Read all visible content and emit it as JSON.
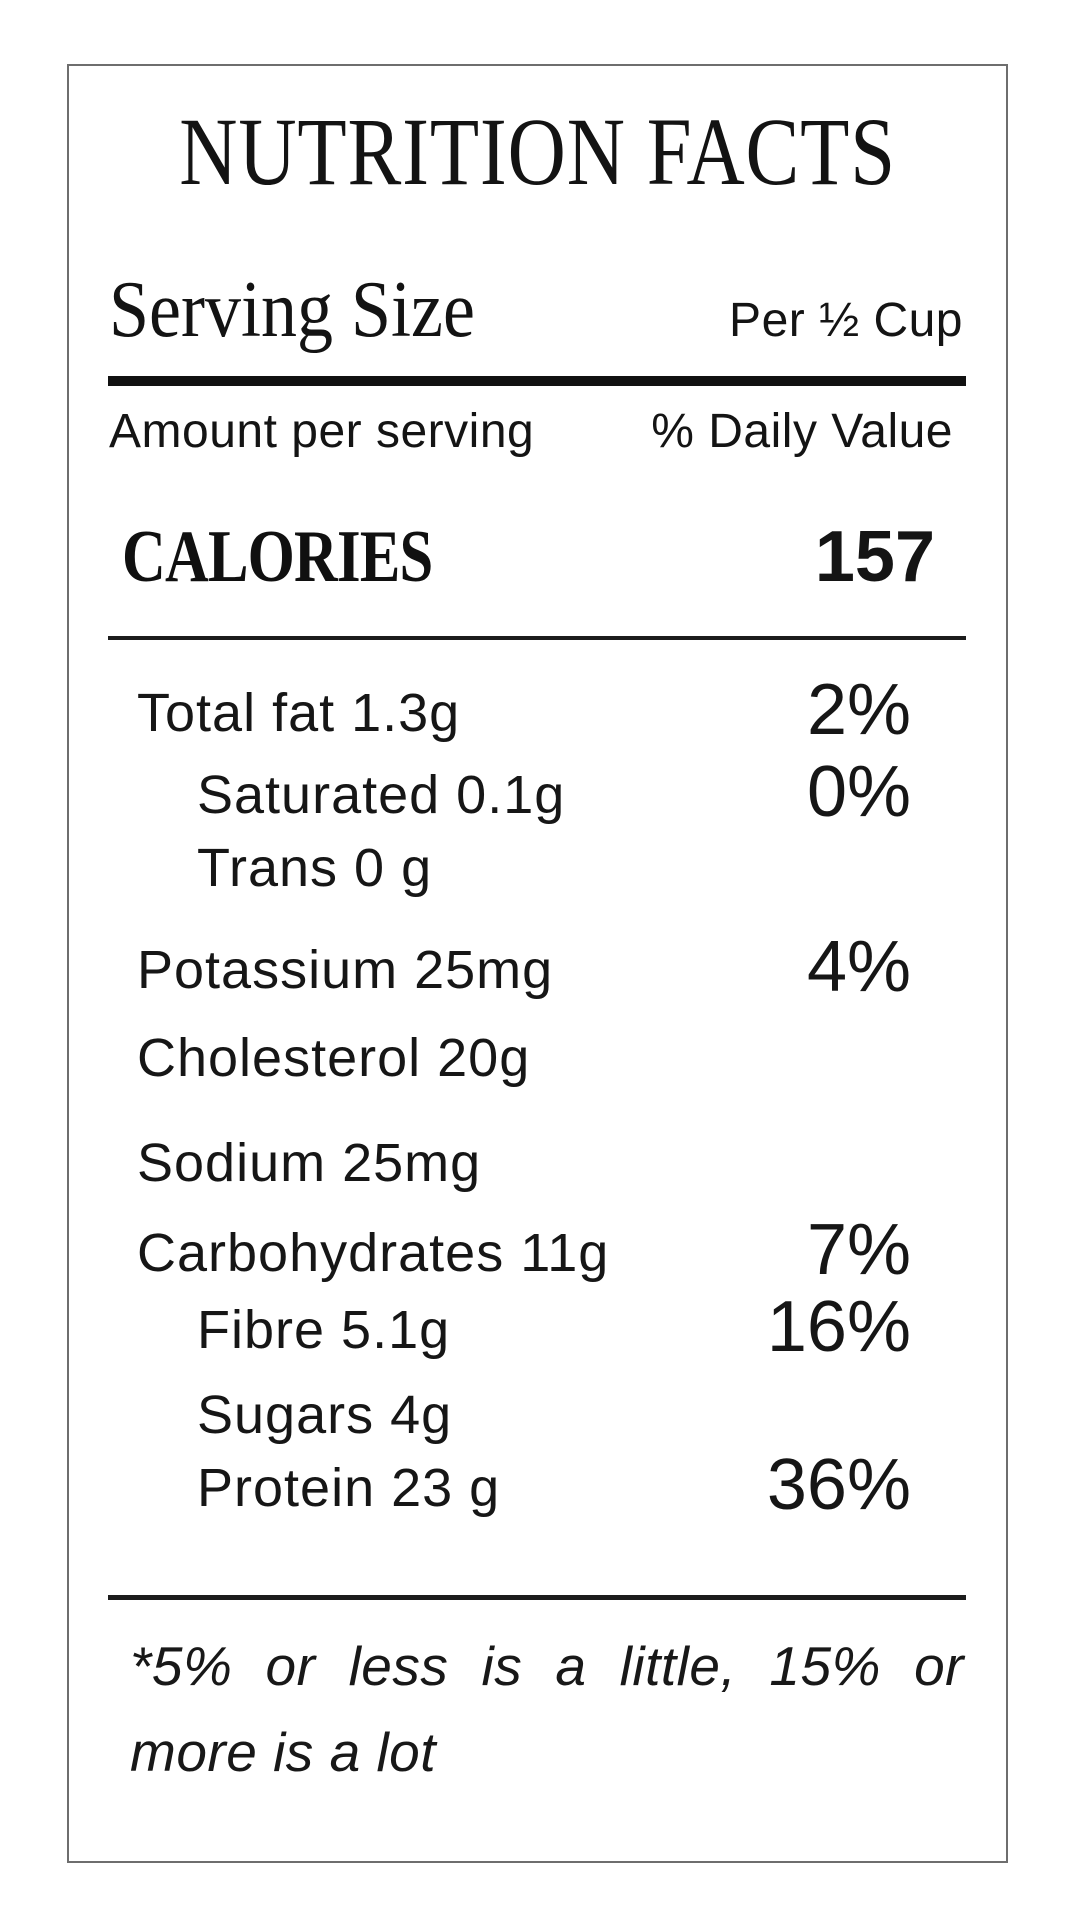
{
  "label": {
    "title": "NUTRITION FACTS",
    "serving": {
      "label": "Serving Size",
      "value": "Per ½ Cup"
    },
    "column_headers": {
      "left": "Amount per serving",
      "right": "% Daily Value"
    },
    "calories": {
      "label": "CALORIES",
      "value": "157"
    },
    "nutrients": [
      {
        "name": "Total fat",
        "amount": "1.3g",
        "text": "Total fat 1.3g",
        "daily_value": "2%"
      },
      {
        "name": "Saturated",
        "amount": "0.1g",
        "text": "Saturated 0.1g",
        "daily_value": "0%"
      },
      {
        "name": "Trans",
        "amount": "0 g",
        "text": "Trans 0 g",
        "daily_value": ""
      },
      {
        "name": "Potassium",
        "amount": "25mg",
        "text": "Potassium 25mg",
        "daily_value": "4%"
      },
      {
        "name": "Cholesterol",
        "amount": "20g",
        "text": "Cholesterol 20g",
        "daily_value": ""
      },
      {
        "name": "Sodium",
        "amount": "25mg",
        "text": "Sodium 25mg",
        "daily_value": ""
      },
      {
        "name": "Carbohydrates",
        "amount": "11g",
        "text": "Carbohydrates 11g",
        "daily_value": "7%"
      },
      {
        "name": "Fibre",
        "amount": "5.1g",
        "text": "Fibre 5.1g",
        "daily_value": "16%"
      },
      {
        "name": "Sugars",
        "amount": "4g",
        "text": "Sugars 4g",
        "daily_value": ""
      },
      {
        "name": "Protein",
        "amount": "23 g",
        "text": "Protein 23 g",
        "daily_value": "36%"
      }
    ],
    "footnote": {
      "text": "*5% or less is a little, 15% or more is a lot",
      "line1": "*5% or less is a little, 15% or",
      "line2": "more is a lot"
    },
    "colors": {
      "text": "#141414",
      "background": "#ffffff",
      "card_border": "#6e6e6e",
      "rule": "#111111"
    }
  }
}
